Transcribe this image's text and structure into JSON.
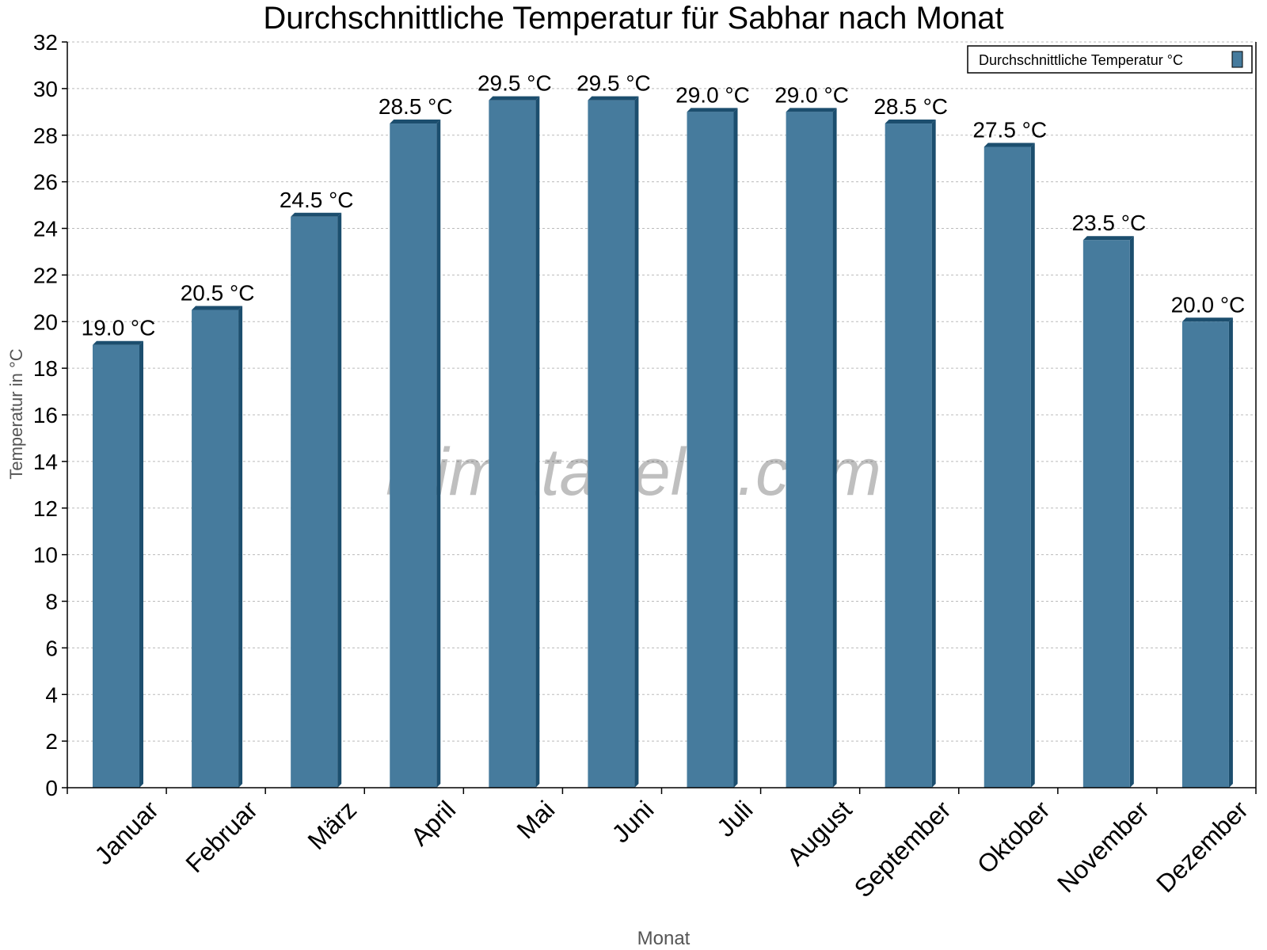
{
  "chart_data": {
    "type": "bar",
    "title": "Durchschnittliche Temperatur für Sabhar nach Monat",
    "xlabel": "Monat",
    "ylabel": "Temperatur in °C",
    "ylim": [
      0,
      32
    ],
    "yticks": [
      0,
      2,
      4,
      6,
      8,
      10,
      12,
      14,
      16,
      18,
      20,
      22,
      24,
      26,
      28,
      30,
      32
    ],
    "grid": true,
    "legend_position": "top-right",
    "categories": [
      "Januar",
      "Februar",
      "März",
      "April",
      "Mai",
      "Juni",
      "Juli",
      "August",
      "September",
      "Oktober",
      "November",
      "Dezember"
    ],
    "series": [
      {
        "name": "Durchschnittliche Temperatur °C",
        "values": [
          19.0,
          20.5,
          24.5,
          28.5,
          29.5,
          29.5,
          29.0,
          29.0,
          28.5,
          27.5,
          23.5,
          20.0
        ],
        "data_labels": [
          "19.0 °C",
          "20.5 °C",
          "24.5 °C",
          "28.5 °C",
          "29.5 °C",
          "29.5 °C",
          "29.0 °C",
          "29.0 °C",
          "28.5 °C",
          "27.5 °C",
          "23.5 °C",
          "20.0 °C"
        ],
        "color": "#467b9d",
        "edge_color": "#1c4e6e"
      }
    ],
    "watermark": "klimatabelle.com"
  }
}
